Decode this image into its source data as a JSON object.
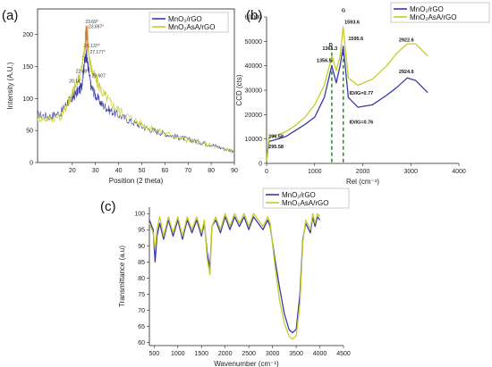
{
  "colors": {
    "series1": "#3a3aa8",
    "series2": "#c8cc2a",
    "marker": "#cc2222",
    "dashed": "#2a8a2a"
  },
  "chart_data": [
    {
      "id": "a",
      "panel_label": "(a)",
      "type": "line",
      "xlabel": "Position (2 theta)",
      "ylabel": "Intensity (A.U.)",
      "xlim": [
        5,
        90
      ],
      "ylim": [
        0,
        240
      ],
      "xticks": [
        20,
        30,
        40,
        50,
        60,
        70,
        80,
        90
      ],
      "yticks": [
        0,
        50,
        100,
        150,
        200
      ],
      "legend": [
        "MnO₂/rGO",
        "MnO₂AsA/rGO"
      ],
      "series": [
        {
          "name": "MnO₂/rGO",
          "x": [
            5,
            10,
            15,
            18,
            20,
            22,
            24,
            25,
            26,
            27,
            28,
            30,
            33,
            36,
            40,
            45,
            50,
            55,
            60,
            65,
            70,
            75,
            80,
            85,
            90
          ],
          "y": [
            75,
            72,
            78,
            95,
            100,
            110,
            118,
            150,
            170,
            145,
            120,
            105,
            90,
            82,
            74,
            65,
            56,
            50,
            45,
            40,
            36,
            32,
            28,
            22,
            18
          ]
        },
        {
          "name": "MnO₂AsA/rGO",
          "x": [
            5,
            10,
            15,
            18,
            20,
            22,
            24,
            25,
            26,
            27,
            28,
            30,
            33,
            36,
            40,
            45,
            50,
            55,
            60,
            65,
            70,
            75,
            80,
            85,
            90
          ],
          "y": [
            70,
            68,
            72,
            92,
            108,
            125,
            145,
            170,
            210,
            175,
            150,
            130,
            110,
            95,
            82,
            70,
            60,
            52,
            46,
            40,
            35,
            31,
            26,
            22,
            18
          ]
        }
      ],
      "annotations": [
        {
          "x": 18.6,
          "y": 125,
          "text": "20.14°"
        },
        {
          "x": 21.5,
          "y": 140,
          "text": "22.08°"
        },
        {
          "x": 25.2,
          "y": 180,
          "text": "26.137°"
        },
        {
          "x": 25.6,
          "y": 218,
          "text": "23.69°"
        },
        {
          "x": 27.0,
          "y": 210,
          "text": "23.697°"
        },
        {
          "x": 27.6,
          "y": 170,
          "text": "27.177°"
        },
        {
          "x": 28.4,
          "y": 133,
          "text": "29.607"
        }
      ]
    },
    {
      "id": "b",
      "panel_label": "(b)",
      "type": "line",
      "xlabel": "Rel (cm⁻¹)",
      "ylabel": "CCD (cts)",
      "xlim": [
        0,
        4000
      ],
      "ylim": [
        0,
        60000
      ],
      "xticks": [
        0,
        1000,
        2000,
        3000,
        4000
      ],
      "yticks": [
        0,
        10000,
        20000,
        30000,
        40000,
        50000,
        60000
      ],
      "legend": [
        "MnO₂/rGO",
        "MnO₂AsA/rGO"
      ],
      "series": [
        {
          "name": "MnO₂/rGO",
          "x": [
            0,
            50,
            200,
            400,
            600,
            800,
            1000,
            1200,
            1356,
            1450,
            1530,
            1595,
            1700,
            1900,
            2200,
            2500,
            2700,
            2924,
            3100,
            3350
          ],
          "y": [
            1000,
            9000,
            9800,
            11000,
            13500,
            16000,
            19000,
            27000,
            40000,
            33000,
            40000,
            48000,
            27000,
            23000,
            24000,
            28000,
            31000,
            35000,
            34000,
            29000
          ]
        },
        {
          "name": "MnO₂AsA/rGO",
          "x": [
            0,
            50,
            200,
            400,
            600,
            800,
            1000,
            1200,
            1361,
            1450,
            1530,
            1593,
            1700,
            1900,
            2200,
            2500,
            2700,
            2922,
            3100,
            3350
          ],
          "y": [
            1000,
            10500,
            11500,
            13000,
            15500,
            19000,
            24000,
            32000,
            44000,
            38000,
            44000,
            56000,
            35000,
            32000,
            34500,
            40000,
            45000,
            49000,
            49000,
            44000
          ]
        }
      ],
      "annotations": [
        {
          "x": 40,
          "y": 10500,
          "text": "296.58"
        },
        {
          "x": 40,
          "y": 6200,
          "text": "295.58"
        },
        {
          "x": 1040,
          "y": 41500,
          "text": "1356.5"
        },
        {
          "x": 1160,
          "y": 46500,
          "text": "1361.3"
        },
        {
          "x": 1620,
          "y": 57200,
          "text": "1593.6"
        },
        {
          "x": 1700,
          "y": 50500,
          "text": "1595.6"
        },
        {
          "x": 2750,
          "y": 50000,
          "text": "2922.6"
        },
        {
          "x": 2750,
          "y": 37000,
          "text": "2924.6"
        },
        {
          "x": 1720,
          "y": 28200,
          "text": "ID/IG=0.77"
        },
        {
          "x": 1720,
          "y": 16300,
          "text": "ID/IG=0.76"
        },
        {
          "x": 1300,
          "y": 48000,
          "text": "D"
        },
        {
          "x": 1560,
          "y": 62000,
          "text": "G"
        }
      ],
      "vlines": [
        1356,
        1595
      ]
    },
    {
      "id": "c",
      "panel_label": "(c)",
      "type": "line",
      "xlabel": "Wavenumber (cm⁻¹)",
      "ylabel": "Transmittance (a.u)",
      "xlim": [
        400,
        4500
      ],
      "ylim": [
        59,
        102
      ],
      "xticks": [
        500,
        1000,
        1500,
        2000,
        2500,
        3000,
        3500,
        4000,
        4500
      ],
      "yticks": [
        60,
        65,
        70,
        75,
        80,
        85,
        90,
        95,
        100
      ],
      "legend": [
        "MnO₂/rGO",
        "MnO₂AsA/rGO"
      ],
      "series": [
        {
          "name": "MnO₂/rGO",
          "x": [
            400,
            480,
            520,
            560,
            620,
            700,
            800,
            900,
            1000,
            1100,
            1200,
            1300,
            1400,
            1500,
            1560,
            1620,
            1680,
            1720,
            1800,
            1900,
            2000,
            2100,
            2200,
            2300,
            2400,
            2500,
            2600,
            2700,
            2800,
            2900,
            2950,
            3050,
            3150,
            3250,
            3350,
            3420,
            3500,
            3580,
            3640,
            3700,
            3800,
            3850,
            3900,
            3950,
            4000
          ],
          "y": [
            98,
            95,
            85,
            93,
            97,
            92,
            98,
            93,
            98,
            92,
            98,
            94,
            98,
            93,
            97,
            88,
            83,
            96,
            98,
            94,
            99,
            95,
            99,
            96,
            99,
            95,
            99,
            97,
            95,
            98,
            96,
            86,
            77,
            69,
            64,
            63,
            64,
            75,
            92,
            97,
            94,
            99,
            96,
            99,
            98
          ]
        },
        {
          "name": "MnO₂AsA/rGO",
          "x": [
            400,
            480,
            520,
            560,
            620,
            700,
            800,
            900,
            1000,
            1100,
            1200,
            1300,
            1400,
            1500,
            1560,
            1620,
            1680,
            1720,
            1800,
            1900,
            2000,
            2100,
            2200,
            2300,
            2400,
            2500,
            2600,
            2700,
            2800,
            2900,
            2950,
            3050,
            3150,
            3250,
            3350,
            3420,
            3500,
            3580,
            3640,
            3700,
            3800,
            3850,
            3900,
            3950,
            4000
          ],
          "y": [
            97,
            94,
            89,
            95,
            99,
            93,
            99,
            94,
            99,
            93,
            99,
            95,
            99,
            94,
            98,
            86,
            81,
            96,
            99,
            95,
            100,
            96,
            100,
            97,
            100,
            96,
            100,
            98,
            96,
            99,
            97,
            84,
            73,
            66,
            62,
            61,
            62,
            72,
            91,
            98,
            95,
            100,
            97,
            100,
            99
          ]
        }
      ]
    }
  ]
}
